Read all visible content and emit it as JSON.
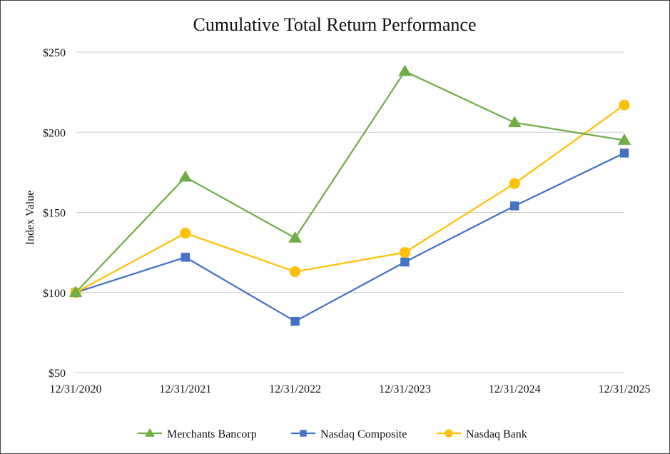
{
  "chart_data": {
    "type": "line",
    "title": "Cumulative Total Return Performance",
    "xlabel": "",
    "ylabel": "Index Value",
    "categories": [
      "12/31/2020",
      "12/31/2021",
      "12/31/2022",
      "12/31/2023",
      "12/31/2024",
      "12/31/2025"
    ],
    "y_ticks": [
      "$50",
      "$100",
      "$150",
      "$200",
      "$250"
    ],
    "y_tick_values": [
      50,
      100,
      150,
      200,
      250
    ],
    "ylim": [
      50,
      250
    ],
    "grid": "horizontal",
    "legend_position": "bottom",
    "series": [
      {
        "name": "Merchants Bancorp",
        "values": [
          100,
          172,
          134,
          238,
          206,
          195
        ],
        "color": "#70ad47",
        "marker": "triangle"
      },
      {
        "name": "Nasdaq Composite",
        "values": [
          100,
          122,
          82,
          119,
          154,
          187
        ],
        "color": "#4472c4",
        "marker": "square"
      },
      {
        "name": "Nasdaq Bank",
        "values": [
          100,
          137,
          113,
          125,
          168,
          217
        ],
        "color": "#ffc000",
        "marker": "circle"
      }
    ]
  }
}
